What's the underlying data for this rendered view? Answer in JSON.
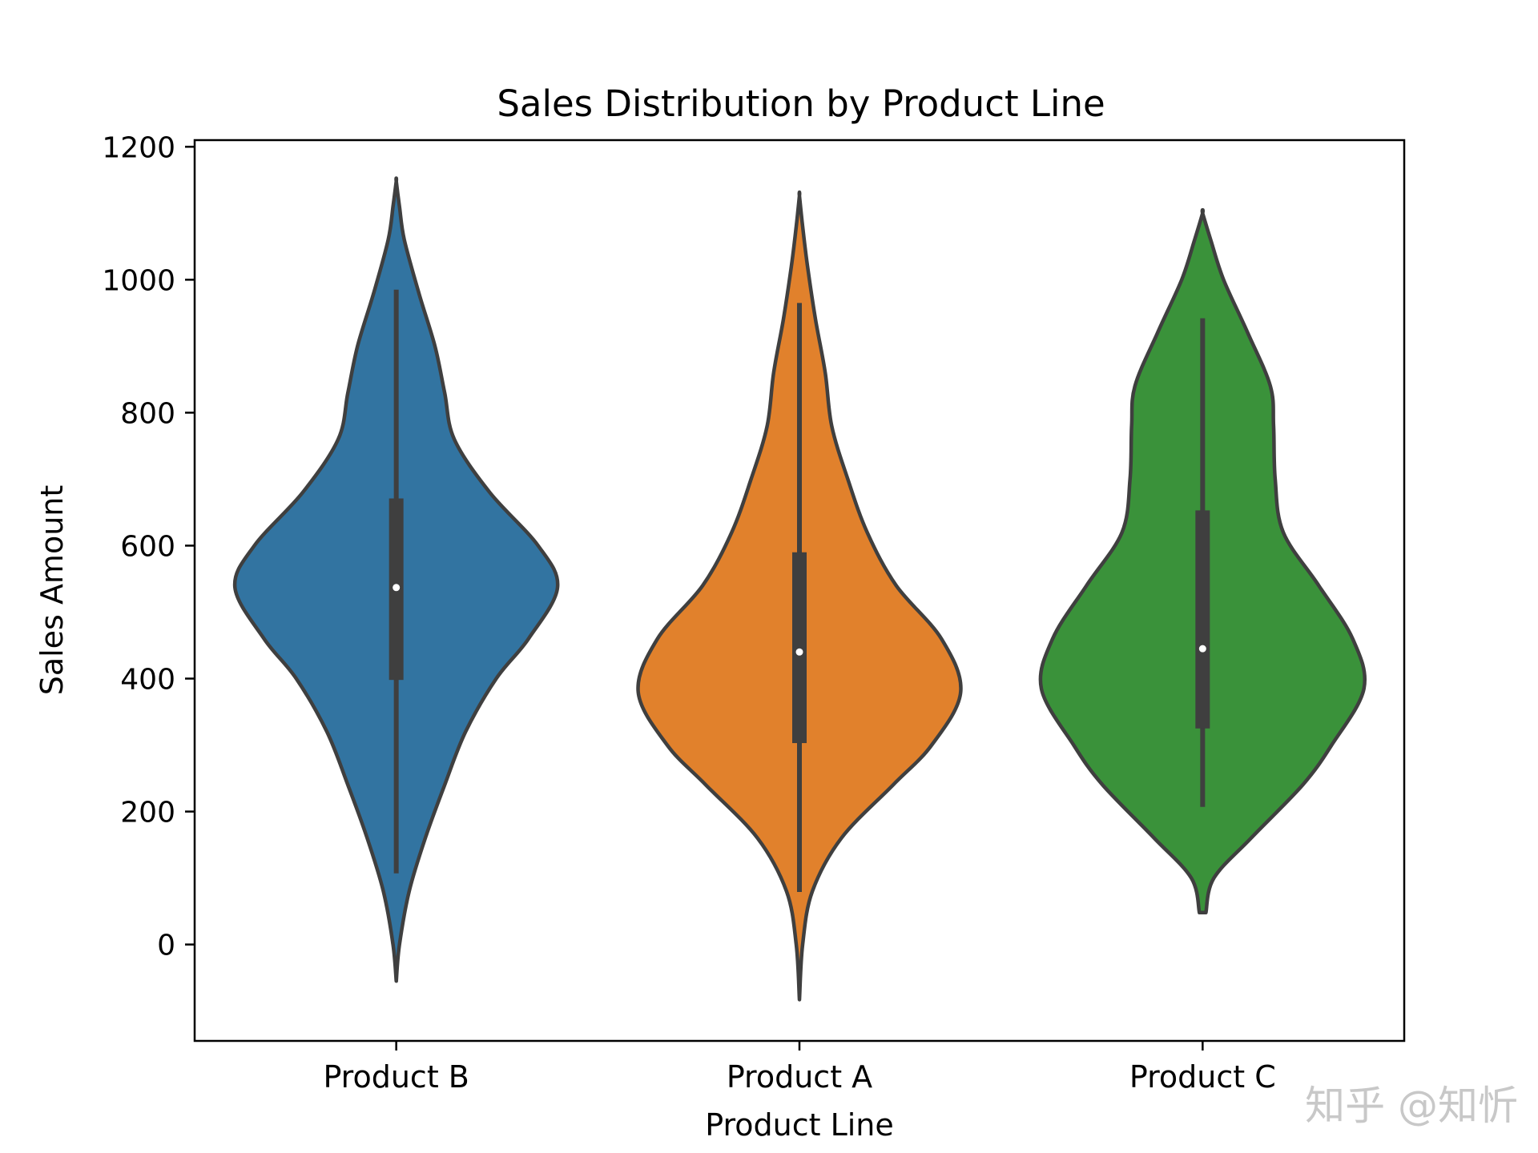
{
  "chart_data": {
    "type": "violin",
    "title": "Sales Distribution by Product Line",
    "xlabel": "Product Line",
    "ylabel": "Sales Amount",
    "ylim": [
      -145,
      1210
    ],
    "yticks": [
      0,
      200,
      400,
      600,
      800,
      1000,
      1200
    ],
    "grid": false,
    "categories": [
      "Product B",
      "Product A",
      "Product C"
    ],
    "series": [
      {
        "category": "Product B",
        "color": "#3274a1",
        "median": 537,
        "q1": 398,
        "q3": 671,
        "whisker_low": 107,
        "whisker_high": 985,
        "kde_min": -55,
        "kde_max": 1148,
        "density": [
          [
            -55,
            0.0
          ],
          [
            0,
            0.02
          ],
          [
            80,
            0.08
          ],
          [
            160,
            0.18
          ],
          [
            240,
            0.3
          ],
          [
            320,
            0.43
          ],
          [
            400,
            0.62
          ],
          [
            460,
            0.82
          ],
          [
            537,
            1.0
          ],
          [
            600,
            0.88
          ],
          [
            680,
            0.58
          ],
          [
            760,
            0.36
          ],
          [
            830,
            0.3
          ],
          [
            900,
            0.24
          ],
          [
            980,
            0.14
          ],
          [
            1060,
            0.05
          ],
          [
            1110,
            0.02
          ],
          [
            1148,
            0.0
          ]
        ]
      },
      {
        "category": "Product A",
        "color": "#e1812c",
        "median": 440,
        "q1": 303,
        "q3": 590,
        "whisker_low": 79,
        "whisker_high": 965,
        "kde_min": -83,
        "kde_max": 1126,
        "density": [
          [
            -83,
            0.0
          ],
          [
            0,
            0.02
          ],
          [
            80,
            0.08
          ],
          [
            160,
            0.26
          ],
          [
            240,
            0.58
          ],
          [
            300,
            0.82
          ],
          [
            380,
            1.0
          ],
          [
            460,
            0.88
          ],
          [
            540,
            0.6
          ],
          [
            620,
            0.42
          ],
          [
            700,
            0.3
          ],
          [
            780,
            0.2
          ],
          [
            860,
            0.16
          ],
          [
            940,
            0.1
          ],
          [
            1020,
            0.05
          ],
          [
            1080,
            0.02
          ],
          [
            1126,
            0.0
          ]
        ]
      },
      {
        "category": "Product C",
        "color": "#3a923a",
        "median": 445,
        "q1": 325,
        "q3": 653,
        "whisker_low": 207,
        "whisker_high": 942,
        "kde_min": 48,
        "kde_max": 1100,
        "density": [
          [
            48,
            0.02
          ],
          [
            100,
            0.07
          ],
          [
            160,
            0.3
          ],
          [
            240,
            0.62
          ],
          [
            300,
            0.8
          ],
          [
            385,
            1.0
          ],
          [
            460,
            0.93
          ],
          [
            540,
            0.72
          ],
          [
            620,
            0.5
          ],
          [
            700,
            0.45
          ],
          [
            780,
            0.44
          ],
          [
            840,
            0.42
          ],
          [
            920,
            0.28
          ],
          [
            1000,
            0.13
          ],
          [
            1060,
            0.05
          ],
          [
            1100,
            0.0
          ]
        ]
      }
    ]
  },
  "watermark": "知乎 @知忻"
}
